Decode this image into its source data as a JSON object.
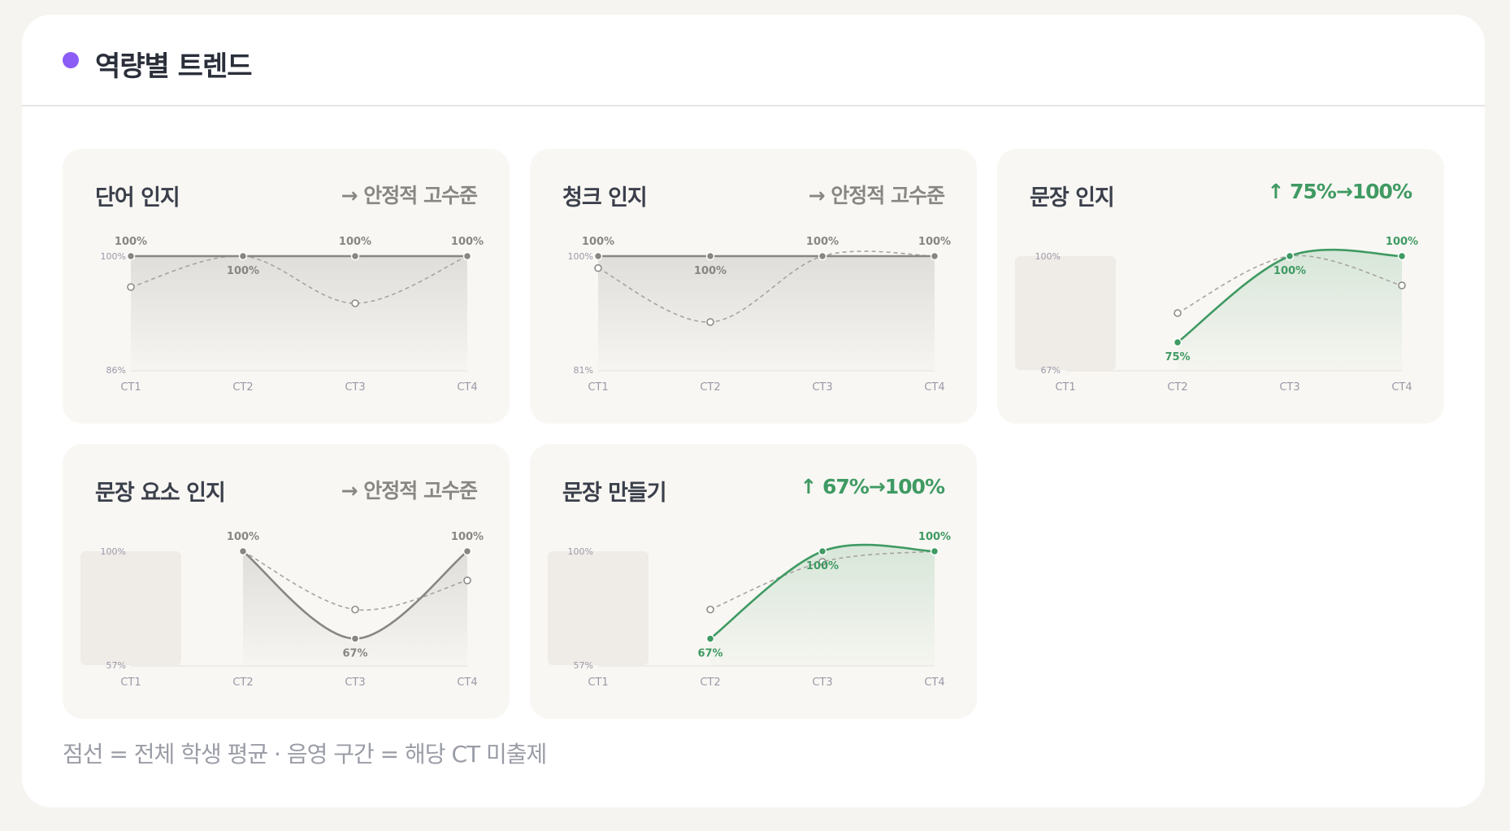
{
  "header": {
    "title": "역량별 트렌드",
    "dot_color": "#8b5cf6"
  },
  "colors": {
    "stable_line": "#878683",
    "up_line": "#3f9a63",
    "avg_line": "#a6a4a0",
    "axis_text": "#9b98a8",
    "missing_band": "#efece7"
  },
  "panels": [
    {
      "title": "단어 인지",
      "trend": "→ 안정적 고수준",
      "trend_kind": "stable",
      "chart_data": {
        "type": "line",
        "categories": [
          "CT1",
          "CT2",
          "CT3",
          "CT4"
        ],
        "ylim": [
          86,
          100
        ],
        "y_tick_labels": [
          "100%",
          "86%"
        ],
        "missing": [],
        "series": [
          {
            "role": "student",
            "values": [
              100,
              100,
              100,
              100
            ],
            "labels": [
              "100%",
              "100%",
              "100%",
              "100%"
            ]
          },
          {
            "role": "average",
            "values": [
              96.2,
              100,
              94.2,
              100
            ]
          }
        ]
      }
    },
    {
      "title": "청크 인지",
      "trend": "→ 안정적 고수준",
      "trend_kind": "stable",
      "chart_data": {
        "type": "line",
        "categories": [
          "CT1",
          "CT2",
          "CT3",
          "CT4"
        ],
        "ylim": [
          81,
          100
        ],
        "y_tick_labels": [
          "100%",
          "81%"
        ],
        "missing": [],
        "series": [
          {
            "role": "student",
            "values": [
              100,
              100,
              100,
              100
            ],
            "labels": [
              "100%",
              "100%",
              "100%",
              "100%"
            ]
          },
          {
            "role": "average",
            "values": [
              98,
              89,
              100,
              100
            ]
          }
        ]
      }
    },
    {
      "title": "문장 인지",
      "trend": "↑ 75%→100%",
      "trend_kind": "up",
      "chart_data": {
        "type": "line",
        "categories": [
          "CT1",
          "CT2",
          "CT3",
          "CT4"
        ],
        "ylim": [
          67,
          100
        ],
        "y_tick_labels": [
          "100%",
          "67%"
        ],
        "missing": [
          "CT1"
        ],
        "series": [
          {
            "role": "student",
            "values": [
              null,
              75,
              100,
              100
            ],
            "labels": [
              null,
              "75%",
              "100%",
              "100%"
            ]
          },
          {
            "role": "average",
            "values": [
              null,
              83.5,
              100,
              91.5
            ]
          }
        ]
      }
    },
    {
      "title": "문장 요소 인지",
      "trend": "→ 안정적 고수준",
      "trend_kind": "stable",
      "chart_data": {
        "type": "line",
        "categories": [
          "CT1",
          "CT2",
          "CT3",
          "CT4"
        ],
        "ylim": [
          57,
          100
        ],
        "y_tick_labels": [
          "100%",
          "57%"
        ],
        "missing": [
          "CT1"
        ],
        "series": [
          {
            "role": "student",
            "values": [
              null,
              100,
              67,
              100
            ],
            "labels": [
              null,
              "100%",
              "67%",
              "100%"
            ]
          },
          {
            "role": "average",
            "values": [
              null,
              100,
              78,
              89
            ]
          }
        ]
      }
    },
    {
      "title": "문장 만들기",
      "trend": "↑ 67%→100%",
      "trend_kind": "up",
      "chart_data": {
        "type": "line",
        "categories": [
          "CT1",
          "CT2",
          "CT3",
          "CT4"
        ],
        "ylim": [
          57,
          100
        ],
        "y_tick_labels": [
          "100%",
          "57%"
        ],
        "missing": [
          "CT1"
        ],
        "series": [
          {
            "role": "student",
            "values": [
              null,
              67,
              100,
              100
            ],
            "labels": [
              null,
              "67%",
              "100%",
              "100%"
            ]
          },
          {
            "role": "average",
            "values": [
              null,
              78,
              96,
              100
            ]
          }
        ]
      }
    }
  ],
  "footnote": "점선 = 전체 학생 평균 · 음영 구간 = 해당 CT 미출제"
}
